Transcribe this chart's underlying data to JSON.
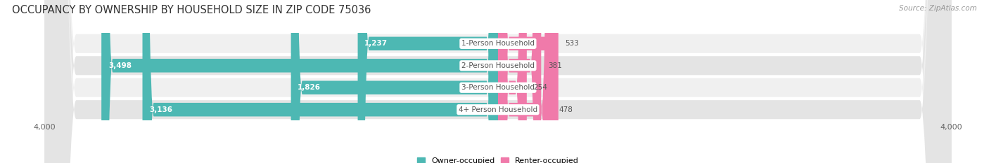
{
  "title": "OCCUPANCY BY OWNERSHIP BY HOUSEHOLD SIZE IN ZIP CODE 75036",
  "source": "Source: ZipAtlas.com",
  "categories": [
    "1-Person Household",
    "2-Person Household",
    "3-Person Household",
    "4+ Person Household"
  ],
  "owner_values": [
    1237,
    3498,
    1826,
    3136
  ],
  "renter_values": [
    533,
    381,
    254,
    478
  ],
  "max_scale": 4000,
  "owner_color": "#4db8b3",
  "renter_color": "#f07aaa",
  "bg_color": "#ffffff",
  "owner_label": "Owner-occupied",
  "renter_label": "Renter-occupied",
  "title_fontsize": 10.5,
  "source_fontsize": 7.5,
  "bar_height": 0.62,
  "row_colors_odd": "#f0f0f0",
  "row_colors_even": "#e4e4e4",
  "owner_label_inside_color": "#ffffff",
  "owner_label_outside_color": "#4db8b3",
  "renter_label_color": "#555555",
  "center_label_color": "#555555"
}
